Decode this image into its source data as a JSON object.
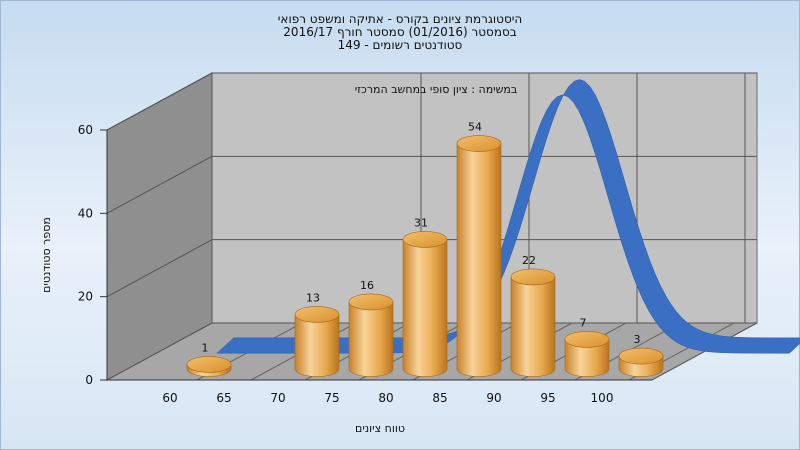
{
  "chart_data": {
    "type": "bar",
    "title_lines": [
      "היסטוגרמת ציונים בקורס - אתיקה ומשפט רפואי",
      "בסמסטר  (01/2016)  סמסטר חורף 2016/17",
      "סטודנטים רשומים - 149"
    ],
    "subtitle": "במשימה : ציון סופי במחשב המרכזי",
    "xlabel": "טווח ציונים",
    "ylabel": "מספר סטודנטים",
    "ylim": [
      0,
      60
    ],
    "yticks": [
      0,
      20,
      40,
      60
    ],
    "xticks": [
      "60",
      "65",
      "70",
      "75",
      "80",
      "85",
      "90",
      "95",
      "100"
    ],
    "bars": [
      {
        "x": 60,
        "value": 1
      },
      {
        "x": 70,
        "value": 13
      },
      {
        "x": 75,
        "value": 16
      },
      {
        "x": 80,
        "value": 31
      },
      {
        "x": 85,
        "value": 54
      },
      {
        "x": 90,
        "value": 22
      },
      {
        "x": 95,
        "value": 7
      },
      {
        "x": 100,
        "value": 3
      }
    ],
    "curve": {
      "type": "normal-distribution",
      "peak_y": 62
    },
    "grid": true,
    "colors": {
      "bar_light": "#f7d39a",
      "bar_mid": "#e8a94c",
      "bar_dark": "#b9741f",
      "curve": "#3a6fc4",
      "back_wall": "#c2c2c2",
      "side_wall": "#8f8f8f",
      "floor": "#a7a7a7"
    }
  }
}
